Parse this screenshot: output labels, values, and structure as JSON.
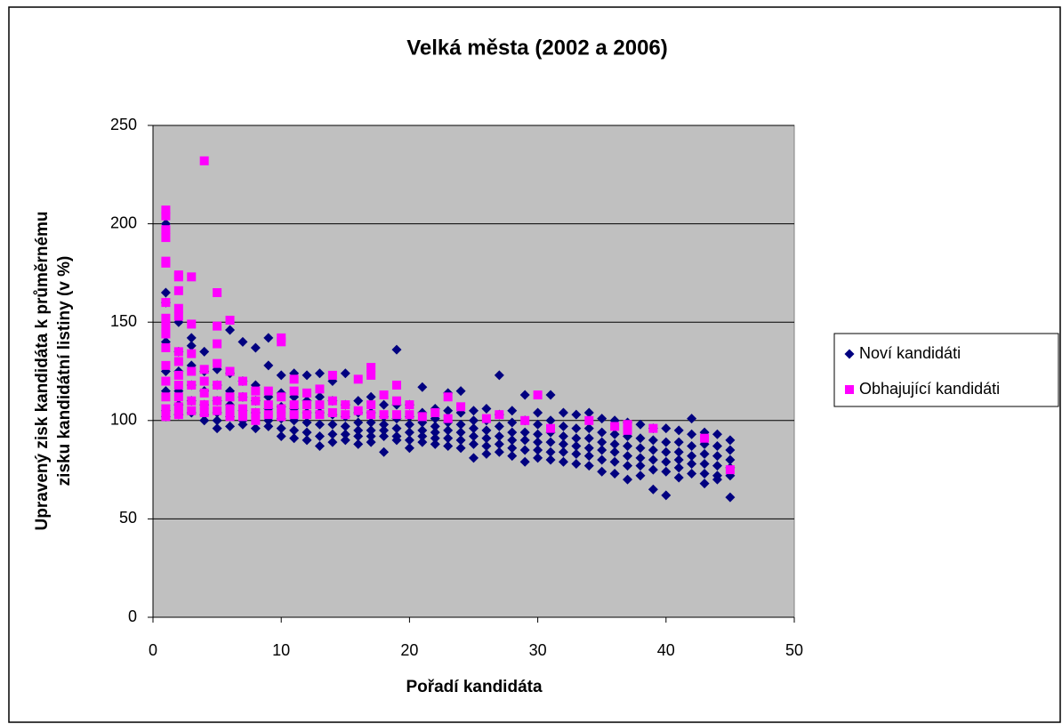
{
  "chart_data": {
    "type": "scatter",
    "title": "Velká města (2002 a 2006)",
    "xlabel": "Pořadí kandidáta",
    "ylabel": [
      "Upravený zisk kandidáta k průměrnému",
      "zisku kandidátní listiny (v %)"
    ],
    "xlim": [
      0,
      50
    ],
    "xticks": [
      0,
      10,
      20,
      30,
      40,
      50
    ],
    "ylim": [
      0,
      250
    ],
    "yticks": [
      0,
      50,
      100,
      150,
      200,
      250
    ],
    "grid": true,
    "legend": "right",
    "series": [
      {
        "name": "Noví kandidáti",
        "color": "#000080",
        "marker": "diamond",
        "x": [
          1,
          1,
          1,
          1,
          1,
          1,
          1,
          1,
          2,
          2,
          2,
          2,
          2,
          2,
          3,
          3,
          3,
          3,
          3,
          3,
          4,
          4,
          4,
          4,
          4,
          4,
          5,
          5,
          5,
          5,
          5,
          5,
          6,
          6,
          6,
          6,
          6,
          6,
          7,
          7,
          7,
          7,
          7,
          7,
          8,
          8,
          8,
          8,
          8,
          8,
          9,
          9,
          9,
          9,
          9,
          9,
          10,
          10,
          10,
          10,
          10,
          10,
          11,
          11,
          11,
          11,
          11,
          11,
          12,
          12,
          12,
          12,
          12,
          12,
          13,
          13,
          13,
          13,
          13,
          13,
          14,
          14,
          14,
          14,
          14,
          14,
          15,
          15,
          15,
          15,
          15,
          15,
          16,
          16,
          16,
          16,
          16,
          16,
          17,
          17,
          17,
          17,
          17,
          17,
          18,
          18,
          18,
          18,
          18,
          18,
          19,
          19,
          19,
          19,
          19,
          19,
          20,
          20,
          20,
          20,
          20,
          20,
          21,
          21,
          21,
          21,
          21,
          21,
          22,
          22,
          22,
          22,
          22,
          22,
          23,
          23,
          23,
          23,
          23,
          23,
          24,
          24,
          24,
          24,
          24,
          24,
          25,
          25,
          25,
          25,
          25,
          25,
          26,
          26,
          26,
          26,
          26,
          26,
          27,
          27,
          27,
          27,
          27,
          27,
          28,
          28,
          28,
          28,
          28,
          28,
          29,
          29,
          29,
          29,
          29,
          29,
          30,
          30,
          30,
          30,
          30,
          30,
          31,
          31,
          31,
          31,
          31,
          31,
          32,
          32,
          32,
          32,
          32,
          32,
          33,
          33,
          33,
          33,
          33,
          33,
          34,
          34,
          34,
          34,
          34,
          34,
          35,
          35,
          35,
          35,
          35,
          35,
          36,
          36,
          36,
          36,
          36,
          36,
          37,
          37,
          37,
          37,
          37,
          37,
          38,
          38,
          38,
          38,
          38,
          38,
          39,
          39,
          39,
          39,
          39,
          39,
          40,
          40,
          40,
          40,
          40,
          40,
          41,
          41,
          41,
          41,
          41,
          41,
          42,
          42,
          42,
          42,
          42,
          42,
          43,
          43,
          43,
          43,
          43,
          43,
          44,
          44,
          44,
          44,
          44,
          44,
          45,
          45,
          45,
          45,
          45,
          45
        ],
        "values": [
          165,
          160,
          140,
          125,
          115,
          105,
          102,
          200,
          150,
          135,
          125,
          115,
          108,
          103,
          142,
          138,
          128,
          118,
          110,
          104,
          135,
          125,
          115,
          108,
          103,
          100,
          126,
          118,
          110,
          104,
          100,
          96,
          146,
          124,
          115,
          108,
          102,
          97,
          140,
          120,
          112,
          105,
          100,
          98,
          137,
          118,
          110,
          104,
          100,
          96,
          142,
          128,
          112,
          106,
          100,
          97,
          123,
          114,
          107,
          101,
          96,
          92,
          124,
          112,
          106,
          100,
          95,
          91,
          123,
          110,
          104,
          99,
          94,
          90,
          124,
          112,
          104,
          98,
          92,
          87,
          120,
          110,
          103,
          98,
          93,
          89,
          124,
          108,
          102,
          97,
          93,
          90,
          110,
          104,
          99,
          95,
          92,
          88,
          112,
          104,
          99,
          95,
          92,
          89,
          108,
          102,
          98,
          95,
          92,
          84,
          136,
          108,
          101,
          96,
          92,
          90,
          108,
          102,
          98,
          94,
          90,
          86,
          117,
          104,
          99,
          95,
          92,
          89,
          106,
          101,
          97,
          94,
          91,
          88,
          114,
          105,
          99,
          95,
          91,
          87,
          115,
          104,
          98,
          94,
          90,
          86,
          105,
          100,
          96,
          92,
          88,
          81,
          106,
          100,
          95,
          91,
          87,
          83,
          123,
          103,
          97,
          92,
          88,
          84,
          105,
          99,
          94,
          90,
          86,
          82,
          113,
          100,
          94,
          90,
          85,
          79,
          104,
          98,
          93,
          89,
          85,
          81,
          113,
          100,
          94,
          89,
          84,
          80,
          104,
          97,
          92,
          88,
          84,
          79,
          103,
          96,
          91,
          87,
          83,
          78,
          104,
          96,
          91,
          86,
          82,
          77,
          101,
          94,
          89,
          85,
          80,
          74,
          100,
          93,
          88,
          84,
          79,
          73,
          99,
          92,
          87,
          82,
          77,
          70,
          98,
          91,
          86,
          81,
          77,
          72,
          96,
          90,
          85,
          80,
          75,
          65,
          96,
          89,
          84,
          79,
          74,
          62,
          95,
          89,
          84,
          80,
          76,
          71,
          101,
          93,
          87,
          82,
          78,
          73,
          94,
          88,
          83,
          78,
          73,
          68,
          93,
          87,
          82,
          77,
          72,
          70,
          90,
          85,
          80,
          76,
          72,
          61
        ]
      },
      {
        "name": "Obhajující kandidáti",
        "color": "#ff00ff",
        "marker": "square",
        "x": [
          1,
          1,
          1,
          1,
          1,
          1,
          1,
          1,
          1,
          1,
          1,
          1,
          1,
          1,
          1,
          1,
          2,
          2,
          2,
          2,
          2,
          2,
          2,
          2,
          2,
          2,
          2,
          2,
          3,
          3,
          3,
          3,
          3,
          3,
          3,
          4,
          4,
          4,
          4,
          4,
          4,
          5,
          5,
          5,
          5,
          5,
          5,
          5,
          6,
          6,
          6,
          6,
          6,
          7,
          7,
          7,
          7,
          8,
          8,
          8,
          8,
          9,
          9,
          9,
          10,
          10,
          10,
          10,
          10,
          11,
          11,
          11,
          11,
          12,
          12,
          12,
          13,
          13,
          13,
          14,
          14,
          14,
          15,
          15,
          16,
          16,
          17,
          17,
          17,
          17,
          18,
          18,
          19,
          19,
          19,
          20,
          20,
          21,
          22,
          23,
          23,
          24,
          26,
          27,
          29,
          30,
          31,
          34,
          36,
          37,
          37,
          39,
          43,
          45
        ],
        "values": [
          207,
          204,
          197,
          193,
          181,
          180,
          160,
          152,
          148,
          144,
          137,
          128,
          120,
          112,
          106,
          102,
          174,
          173,
          166,
          157,
          153,
          135,
          130,
          123,
          118,
          112,
          107,
          103,
          173,
          149,
          134,
          125,
          118,
          110,
          105,
          232,
          126,
          120,
          114,
          108,
          104,
          165,
          148,
          139,
          129,
          118,
          110,
          105,
          151,
          125,
          112,
          106,
          102,
          120,
          112,
          106,
          102,
          115,
          110,
          104,
          100,
          115,
          108,
          103,
          142,
          140,
          112,
          106,
          102,
          121,
          115,
          108,
          103,
          114,
          108,
          103,
          116,
          108,
          103,
          123,
          110,
          104,
          108,
          103,
          121,
          105,
          127,
          123,
          108,
          103,
          113,
          103,
          118,
          110,
          103,
          108,
          103,
          102,
          104,
          112,
          101,
          107,
          101,
          103,
          100,
          113,
          96,
          100,
          97,
          98,
          95,
          96,
          91,
          75
        ]
      }
    ]
  }
}
